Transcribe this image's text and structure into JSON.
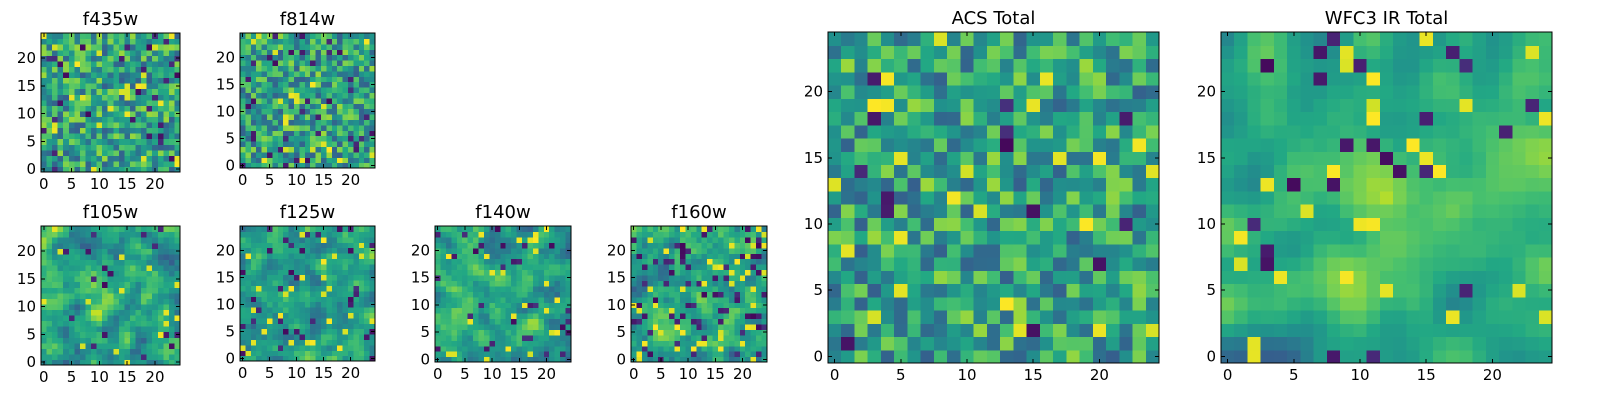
{
  "chart_data": [
    {
      "type": "heatmap",
      "title": "f435w",
      "xlabel": "",
      "ylabel": "",
      "xlim": [
        0,
        24
      ],
      "ylim": [
        0,
        24
      ],
      "x_ticks": [
        0,
        5,
        10,
        15,
        20
      ],
      "y_ticks": [
        0,
        5,
        10,
        15,
        20
      ],
      "grid_size": 25,
      "grid": false,
      "colormap": "viridis",
      "pattern": {
        "seed": 11,
        "smooth": 0,
        "dark": 0.05
      }
    },
    {
      "type": "heatmap",
      "title": "f814w",
      "xlabel": "",
      "ylabel": "",
      "xlim": [
        0,
        24
      ],
      "ylim": [
        0,
        24
      ],
      "x_ticks": [
        0,
        5,
        10,
        15,
        20
      ],
      "y_ticks": [
        0,
        5,
        10,
        15,
        20
      ],
      "grid_size": 25,
      "grid": false,
      "colormap": "viridis",
      "pattern": {
        "seed": 23,
        "smooth": 0,
        "dark": 0.05
      }
    },
    {
      "type": "heatmap",
      "title": "f105w",
      "xlabel": "",
      "ylabel": "",
      "xlim": [
        0,
        24
      ],
      "ylim": [
        0,
        24
      ],
      "x_ticks": [
        0,
        5,
        10,
        15,
        20
      ],
      "y_ticks": [
        0,
        5,
        10,
        15,
        20
      ],
      "grid_size": 25,
      "grid": false,
      "colormap": "viridis",
      "pattern": {
        "seed": 37,
        "smooth": 1,
        "dark": 0.03,
        "blob": [
          11,
          11,
          5
        ]
      }
    },
    {
      "type": "heatmap",
      "title": "f125w",
      "xlabel": "",
      "ylabel": "",
      "xlim": [
        0,
        24
      ],
      "ylim": [
        0,
        24
      ],
      "x_ticks": [
        0,
        5,
        10,
        15,
        20
      ],
      "y_ticks": [
        0,
        5,
        10,
        15,
        20
      ],
      "grid_size": 25,
      "grid": false,
      "colormap": "viridis",
      "pattern": {
        "seed": 41,
        "smooth": 1,
        "dark": 0.06
      }
    },
    {
      "type": "heatmap",
      "title": "f140w",
      "xlabel": "",
      "ylabel": "",
      "xlim": [
        0,
        24
      ],
      "ylim": [
        0,
        24
      ],
      "x_ticks": [
        0,
        5,
        10,
        15,
        20
      ],
      "y_ticks": [
        0,
        5,
        10,
        15,
        20
      ],
      "grid_size": 25,
      "grid": false,
      "colormap": "viridis",
      "pattern": {
        "seed": 53,
        "smooth": 1,
        "dark": 0.06
      }
    },
    {
      "type": "heatmap",
      "title": "f160w",
      "xlabel": "",
      "ylabel": "",
      "xlim": [
        0,
        24
      ],
      "ylim": [
        0,
        24
      ],
      "x_ticks": [
        0,
        5,
        10,
        15,
        20
      ],
      "y_ticks": [
        0,
        5,
        10,
        15,
        20
      ],
      "grid_size": 25,
      "grid": false,
      "colormap": "viridis",
      "pattern": {
        "seed": 67,
        "smooth": 1,
        "dark": 0.08
      }
    },
    {
      "type": "heatmap",
      "title": "ACS Total",
      "xlabel": "",
      "ylabel": "",
      "xlim": [
        0,
        24
      ],
      "ylim": [
        0,
        24
      ],
      "x_ticks": [
        0,
        5,
        10,
        15,
        20
      ],
      "y_ticks": [
        0,
        5,
        10,
        15,
        20
      ],
      "grid_size": 25,
      "grid": false,
      "colormap": "viridis",
      "pattern": {
        "seed": 79,
        "smooth": 0,
        "dark": 0.03
      }
    },
    {
      "type": "heatmap",
      "title": "WFC3 IR Total",
      "xlabel": "",
      "ylabel": "",
      "xlim": [
        0,
        24
      ],
      "ylim": [
        0,
        24
      ],
      "x_ticks": [
        0,
        5,
        10,
        15,
        20
      ],
      "y_ticks": [
        0,
        5,
        10,
        15,
        20
      ],
      "grid_size": 25,
      "grid": false,
      "colormap": "viridis",
      "pattern": {
        "seed": 97,
        "smooth": 2,
        "dark": 0.04,
        "blob": [
          12,
          12,
          4
        ]
      }
    }
  ]
}
